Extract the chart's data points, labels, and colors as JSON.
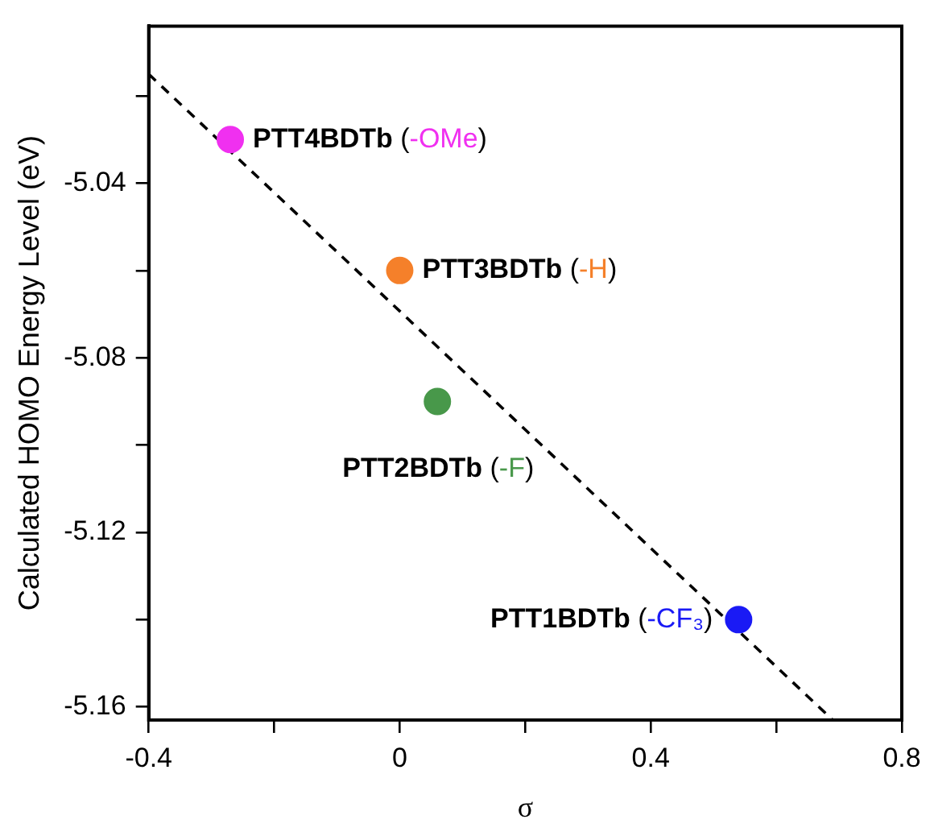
{
  "chart_data": {
    "type": "scatter",
    "xlabel": "σ",
    "ylabel": "Calculated HOMO Energy Level (eV)",
    "xlim": [
      -0.4,
      0.8
    ],
    "ylim": [
      -5.163,
      -5.004
    ],
    "xticks": [
      -0.4,
      {
        "value": -0.2,
        "label": null
      },
      0,
      {
        "value": 0.2,
        "label": null
      },
      0.4,
      {
        "value": 0.6,
        "label": null
      },
      0.8
    ],
    "yticks": [
      {
        "value": -5.02,
        "label": null
      },
      -5.04,
      {
        "value": -5.06,
        "label": null
      },
      -5.08,
      {
        "value": -5.1,
        "label": null
      },
      -5.12,
      {
        "value": -5.14,
        "label": null
      },
      -5.16
    ],
    "grid": false,
    "legend": false,
    "marker": "circle",
    "series": [
      {
        "name": "PTT4BDTb (-OMe)",
        "color": "#f030f0",
        "x": [
          -0.27
        ],
        "values": [
          -5.03
        ]
      },
      {
        "name": "PTT3BDTb (-H)",
        "color": "#f5802a",
        "x": [
          0.0
        ],
        "values": [
          -5.06
        ]
      },
      {
        "name": "PTT2BDTb (-F)",
        "color": "#48984a",
        "x": [
          0.06
        ],
        "values": [
          -5.09
        ]
      },
      {
        "name": "PTT1BDTb (-CF₃)",
        "color": "#1a1af5",
        "x": [
          0.54
        ],
        "values": [
          -5.14
        ]
      },
      {
        "type": "line",
        "color": "#000000",
        "marker": "none",
        "line_style": "dashed",
        "x": [
          -0.4,
          0.69
        ],
        "values": [
          -5.015,
          -5.163
        ]
      }
    ]
  }
}
